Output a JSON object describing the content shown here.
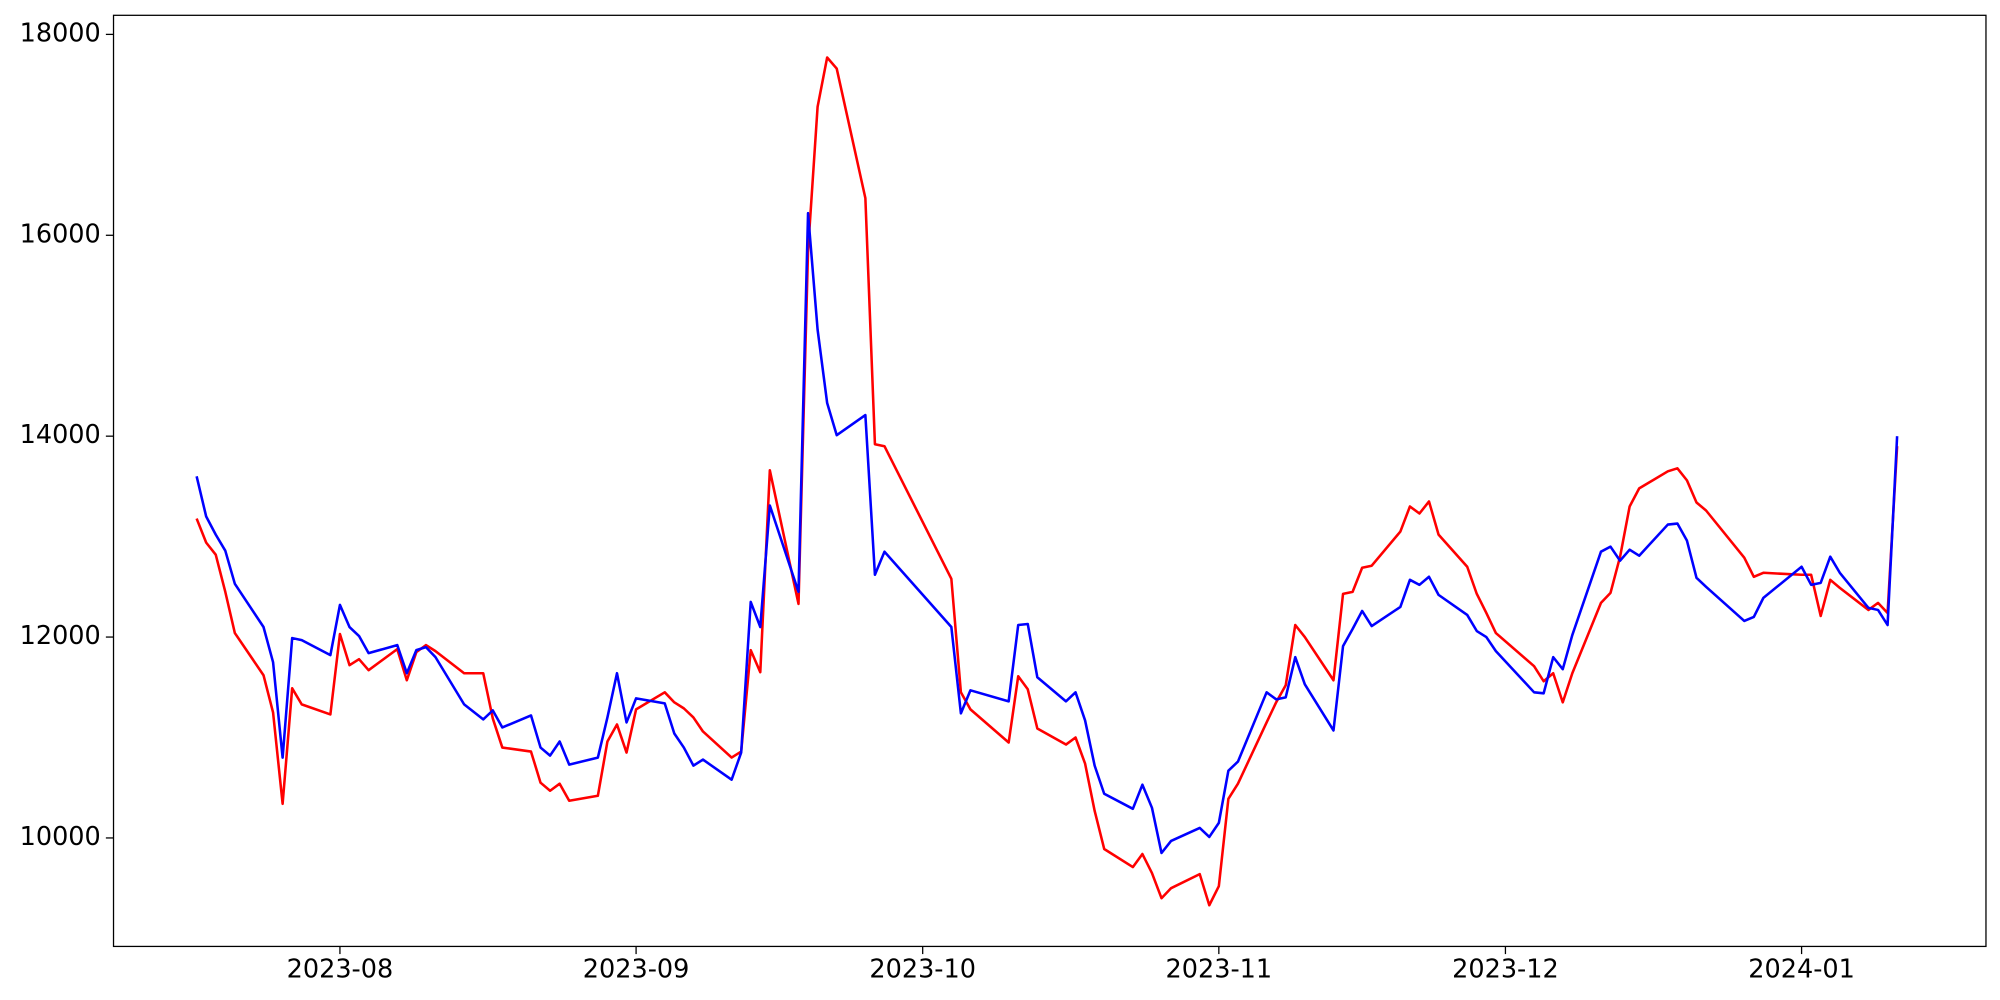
{
  "chart_data": {
    "type": "line",
    "x": [
      -15,
      -14,
      -13,
      -12,
      -11,
      -8,
      -7,
      -6,
      -5,
      -4,
      -1,
      0,
      1,
      2,
      3,
      6,
      7,
      8,
      9,
      10,
      13,
      15,
      16,
      17,
      20,
      21,
      22,
      23,
      24,
      27,
      28,
      29,
      30,
      31,
      34,
      35,
      36,
      37,
      38,
      41,
      42,
      43,
      44,
      45,
      48,
      49,
      50,
      51,
      52,
      55,
      56,
      57,
      64,
      65,
      66,
      70,
      71,
      72,
      73,
      76,
      77,
      78,
      79,
      80,
      83,
      84,
      85,
      86,
      87,
      90,
      91,
      92,
      93,
      94,
      97,
      98,
      99,
      100,
      101,
      104,
      105,
      106,
      107,
      108,
      111,
      112,
      113,
      114,
      115,
      118,
      119,
      120,
      121,
      125,
      126,
      127,
      128,
      129,
      132,
      133,
      134,
      135,
      136,
      139,
      140,
      141,
      142,
      143,
      147,
      148,
      149,
      153,
      154,
      155,
      156,
      157,
      160,
      161,
      162,
      163
    ],
    "series": [
      {
        "color": "red",
        "values": [
          13180,
          12940,
          12820,
          12450,
          12040,
          11620,
          11250,
          10340,
          11490,
          11330,
          11230,
          12030,
          11720,
          11780,
          11670,
          11880,
          11570,
          11850,
          11920,
          11860,
          11640,
          11640,
          11190,
          10900,
          10860,
          10550,
          10470,
          10540,
          10370,
          10420,
          10960,
          11130,
          10850,
          11280,
          11450,
          11350,
          11290,
          11200,
          11060,
          10800,
          10860,
          11870,
          11650,
          13660,
          12330,
          15850,
          17280,
          17770,
          17660,
          16370,
          13920,
          13900,
          12580,
          11450,
          11280,
          10950,
          11610,
          11480,
          11090,
          10930,
          11000,
          10740,
          10270,
          9890,
          9710,
          9840,
          9650,
          9400,
          9500,
          9640,
          9330,
          9520,
          10390,
          10540,
          11150,
          11350,
          11520,
          12120,
          12000,
          11570,
          12430,
          12450,
          12690,
          12710,
          13050,
          13300,
          13230,
          13350,
          13020,
          12700,
          12430,
          12240,
          12040,
          11710,
          11560,
          11640,
          11350,
          11640,
          12340,
          12440,
          12800,
          13300,
          13480,
          13650,
          13680,
          13560,
          13340,
          13260,
          12790,
          12600,
          12640,
          12620,
          12620,
          12210,
          12570,
          12490,
          12270,
          12340,
          12240,
          13900
        ]
      },
      {
        "color": "blue",
        "values": [
          13600,
          13200,
          13020,
          12860,
          12530,
          12100,
          11750,
          10800,
          11990,
          11970,
          11820,
          12320,
          12100,
          12010,
          11840,
          11920,
          11640,
          11870,
          11900,
          11800,
          11330,
          11180,
          11270,
          11100,
          11220,
          10900,
          10820,
          10960,
          10730,
          10800,
          11200,
          11640,
          11150,
          11390,
          11340,
          11040,
          10900,
          10720,
          10780,
          10580,
          10850,
          12350,
          12100,
          13310,
          12450,
          16220,
          15060,
          14330,
          14010,
          14210,
          12620,
          12850,
          12100,
          11240,
          11470,
          11360,
          12120,
          12130,
          11600,
          11360,
          11450,
          11170,
          10720,
          10440,
          10290,
          10530,
          10300,
          9850,
          9970,
          10100,
          10010,
          10150,
          10670,
          10760,
          11450,
          11380,
          11400,
          11800,
          11530,
          11070,
          11910,
          12080,
          12260,
          12110,
          12300,
          12570,
          12520,
          12600,
          12420,
          12220,
          12060,
          12000,
          11860,
          11450,
          11440,
          11800,
          11680,
          12020,
          12850,
          12900,
          12760,
          12870,
          12810,
          13120,
          13130,
          12960,
          12590,
          12500,
          12160,
          12200,
          12390,
          12700,
          12520,
          12540,
          12800,
          12640,
          12290,
          12270,
          12120,
          14000
        ]
      }
    ],
    "xlim": [
      -23.7,
      172.3
    ],
    "xticks": [
      {
        "value": 0,
        "label": "2023-08"
      },
      {
        "value": 31,
        "label": "2023-09"
      },
      {
        "value": 61,
        "label": "2023-10"
      },
      {
        "value": 92,
        "label": "2023-11"
      },
      {
        "value": 122,
        "label": "2023-12"
      },
      {
        "value": 153,
        "label": "2024-01"
      }
    ],
    "ylim": [
      8920,
      18190
    ],
    "yticks": [
      10000,
      12000,
      14000,
      16000,
      18000
    ],
    "grid": false
  }
}
